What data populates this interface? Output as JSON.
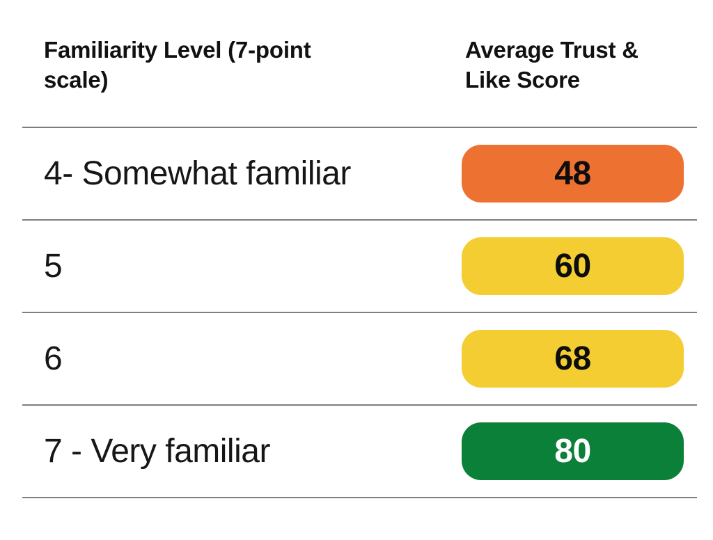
{
  "table": {
    "header": {
      "col1": "Familiarity Level (7-point scale)",
      "col2": "Average Trust & Like Score"
    },
    "rows": [
      {
        "label": "4- Somewhat familiar",
        "score": "48",
        "pill_color": "#ED7231",
        "score_color": "#0D0D0D"
      },
      {
        "label": "5",
        "score": "60",
        "pill_color": "#F3CD32",
        "score_color": "#0D0D0D"
      },
      {
        "label": "6",
        "score": "68",
        "pill_color": "#F3CD32",
        "score_color": "#0D0D0D"
      },
      {
        "label": "7 - Very familiar",
        "score": "80",
        "pill_color": "#0B8038",
        "score_color": "#FFFFFF"
      }
    ],
    "divider_color": "#7E7E7E",
    "background": "#FFFFFF",
    "text_color": "#161616"
  },
  "chart_data": {
    "type": "table",
    "title": "",
    "columns": [
      "Familiarity Level (7-point scale)",
      "Average Trust & Like Score"
    ],
    "categories": [
      "4- Somewhat familiar",
      "5",
      "6",
      "7 - Very familiar"
    ],
    "values": [
      48,
      60,
      68,
      80
    ],
    "cell_colors": [
      "#ED7231",
      "#F3CD32",
      "#F3CD32",
      "#0B8038"
    ],
    "value_text_colors": [
      "#0D0D0D",
      "#0D0D0D",
      "#0D0D0D",
      "#FFFFFF"
    ],
    "legend_position": "none",
    "grid": "row-dividers"
  }
}
